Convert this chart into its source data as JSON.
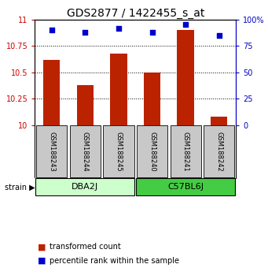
{
  "title": "GDS2877 / 1422455_s_at",
  "samples": [
    "GSM188243",
    "GSM188244",
    "GSM188245",
    "GSM188240",
    "GSM188241",
    "GSM188242"
  ],
  "bar_values": [
    10.62,
    10.38,
    10.68,
    10.5,
    10.9,
    10.08
  ],
  "percentile_values": [
    90,
    88,
    92,
    88,
    95,
    85
  ],
  "ylim_left": [
    10,
    11
  ],
  "ylim_right": [
    0,
    100
  ],
  "yticks_left": [
    10,
    10.25,
    10.5,
    10.75,
    11
  ],
  "yticks_right": [
    0,
    25,
    50,
    75,
    100
  ],
  "bar_color": "#bb2200",
  "percentile_color": "#0000cc",
  "groups": [
    {
      "label": "DBA2J",
      "color": "#ccffcc",
      "indices": [
        0,
        1,
        2
      ]
    },
    {
      "label": "C57BL6J",
      "color": "#44cc44",
      "indices": [
        3,
        4,
        5
      ]
    }
  ],
  "sample_box_color": "#c8c8c8",
  "grid_color": "#555555",
  "left_tick_color": "#cc0000",
  "right_tick_color": "#0000cc",
  "title_fontsize": 10,
  "tick_fontsize": 7,
  "sample_fontsize": 6,
  "group_fontsize": 8,
  "legend_fontsize": 7,
  "bar_width": 0.5
}
